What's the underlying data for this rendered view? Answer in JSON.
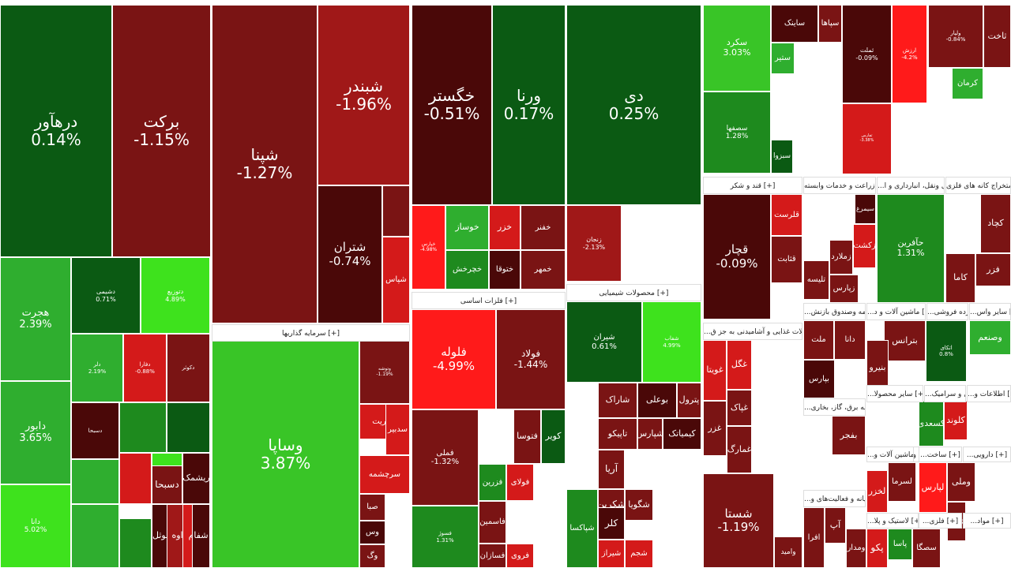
{
  "colors": {
    "dkgreen": "#0b5a13",
    "green": "#1e8a1e",
    "midgreen": "#2fae2f",
    "ltgreen": "#39c527",
    "brgreen": "#3ee21d",
    "dkred": "#4a0808",
    "red": "#7a1414",
    "midred": "#a01818",
    "brred": "#d41a1a",
    "vred": "#ff1a1a"
  },
  "headers": [
    "سرمایه گذاریها [+]",
    "فلزات اساسی [+]",
    "محصولات شیمیایی [+]",
    "قند و شکر [+]",
    "زراعت و خدمات وابسته [+]",
    "...حمل ونقل، انبارداری و ا [+]",
    "استخراج کانه های فلزی [+]",
    "...محصولات غذایی و آشامیدنی به جز ق [+]",
    "...بیمه وصندوق بازنش [+]",
    "...ماشین آلات و د [+]",
    "...خرده فروشی [+]",
    "...سایر واس [+]",
    "...عرضه برق، گاز، بخاری [+]",
    "...سایر محصولا [+]",
    "...کاشی و سرامیک [+]",
    "...اطلاعات و [+]",
    "خودروسازی و ساخت قطعات [+]",
    "...رایانه و فعالیت‌های و [+]",
    "...ماشین آلات و [+]",
    "...ساخت [+]",
    "...دارویی [+]",
    "...لاستیک و پلا [+]",
    "...فلزی [+]",
    "...مواد [+]"
  ],
  "tiles": [
    {
      "s": "درهآور",
      "p": "0.14%",
      "c": "dkgreen"
    },
    {
      "s": "برکت",
      "p": "-1.15%",
      "c": "red"
    },
    {
      "s": "هجرت",
      "p": "2.39%",
      "c": "midgreen"
    },
    {
      "s": "دشیمی",
      "p": "0.71%",
      "c": "dkgreen"
    },
    {
      "s": "دتوزیع",
      "p": "4.89%",
      "c": "brgreen"
    },
    {
      "s": "دابور",
      "p": "3.65%",
      "c": "midgreen"
    },
    {
      "s": "دلر",
      "p": "2.19%",
      "c": "midgreen"
    },
    {
      "s": "دفارا",
      "p": "-0.88%",
      "c": "brred"
    },
    {
      "s": "دکوثر",
      "p": "",
      "c": "red"
    },
    {
      "s": "دانا",
      "p": "5.02%",
      "c": "brgreen"
    },
    {
      "s": "دسبحا",
      "p": "",
      "c": "dkred"
    },
    {
      "s": "",
      "p": "",
      "c": "green"
    },
    {
      "s": "",
      "p": "",
      "c": "dkgreen"
    },
    {
      "s": "",
      "p": "",
      "c": "midgreen"
    },
    {
      "s": "",
      "p": "",
      "c": "brred"
    },
    {
      "s": "",
      "p": "",
      "c": "brgreen"
    },
    {
      "s": "دسبحا",
      "p": "",
      "c": "red"
    },
    {
      "s": "ریشمک",
      "p": "",
      "c": "dkred"
    },
    {
      "s": "",
      "p": "",
      "c": "midgreen"
    },
    {
      "s": "",
      "p": "",
      "c": "green"
    },
    {
      "s": "دکسوثل",
      "p": "",
      "c": "dkred"
    },
    {
      "s": "داوه",
      "p": "",
      "c": "midred"
    },
    {
      "s": "ددام",
      "p": "",
      "c": "brred"
    },
    {
      "s": "شفا",
      "p": "",
      "c": "dkred"
    },
    {
      "s": "شپنا",
      "p": "-1.27%",
      "c": "red"
    },
    {
      "s": "شبندر",
      "p": "-1.96%",
      "c": "midred"
    },
    {
      "s": "شتران",
      "p": "-0.74%",
      "c": "dkred"
    },
    {
      "s": "شپاس",
      "p": "",
      "c": "brred"
    },
    {
      "s": "",
      "p": "",
      "c": "red"
    },
    {
      "s": "وساپا",
      "p": "3.87%",
      "c": "ltgreen"
    },
    {
      "s": "وتوشه",
      "p": "-1.19%",
      "c": "red"
    },
    {
      "s": "مدیریت",
      "p": "",
      "c": "brred"
    },
    {
      "s": "سدبیر",
      "p": "",
      "c": "brred"
    },
    {
      "s": "سرچشمه",
      "p": "",
      "c": "brred"
    },
    {
      "s": "صبا",
      "p": "",
      "c": "red"
    },
    {
      "s": "وس",
      "p": "",
      "c": "dkred"
    },
    {
      "s": "وگ",
      "p": "",
      "c": "red"
    },
    {
      "s": "خگستر",
      "p": "-0.51%",
      "c": "dkred"
    },
    {
      "s": "ورنا",
      "p": "0.17%",
      "c": "dkgreen"
    },
    {
      "s": "خپارس",
      "p": "-4.98%",
      "c": "vred"
    },
    {
      "s": "خوساز",
      "p": "",
      "c": "midgreen"
    },
    {
      "s": "خزر",
      "p": "",
      "c": "brred"
    },
    {
      "s": "خفنر",
      "p": "",
      "c": "red"
    },
    {
      "s": "خچرخش",
      "p": "",
      "c": "green"
    },
    {
      "s": "ختوقا",
      "p": "",
      "c": "dkred"
    },
    {
      "s": "خمهر",
      "p": "",
      "c": "red"
    },
    {
      "s": "فلوله",
      "p": "-4.99%",
      "c": "vred"
    },
    {
      "s": "فولاد",
      "p": "-1.44%",
      "c": "red"
    },
    {
      "s": "فملی",
      "p": "-1.32%",
      "c": "red"
    },
    {
      "s": "فتوسا",
      "p": "",
      "c": "red"
    },
    {
      "s": "کویر",
      "p": "",
      "c": "dkgreen"
    },
    {
      "s": "فزرین",
      "p": "",
      "c": "green"
    },
    {
      "s": "فولای",
      "p": "",
      "c": "brred"
    },
    {
      "s": "فسوژ",
      "p": "1.31%",
      "c": "green"
    },
    {
      "s": "فاسمین",
      "p": "",
      "c": "red"
    },
    {
      "s": "فسازان",
      "p": "",
      "c": "red"
    },
    {
      "s": "فروی",
      "p": "",
      "c": "brred"
    },
    {
      "s": "دی",
      "p": "0.25%",
      "c": "dkgreen"
    },
    {
      "s": "زنجان",
      "p": "-2.13%",
      "c": "midred"
    },
    {
      "s": "شیران",
      "p": "0.61%",
      "c": "dkgreen"
    },
    {
      "s": "شفاب",
      "p": "4.99%",
      "c": "brgreen"
    },
    {
      "s": "شاراک",
      "p": "",
      "c": "red"
    },
    {
      "s": "بوعلی",
      "p": "",
      "c": "dkred"
    },
    {
      "s": "پترول",
      "p": "",
      "c": "red"
    },
    {
      "s": "تاپیکو",
      "p": "",
      "c": "red"
    },
    {
      "s": "شپارس",
      "p": "",
      "c": "red"
    },
    {
      "s": "کیمیاتک",
      "p": "",
      "c": "dkred"
    },
    {
      "s": "آریا",
      "p": "",
      "c": "red"
    },
    {
      "s": "شکربن",
      "p": "",
      "c": "red"
    },
    {
      "s": "کلر",
      "p": "",
      "c": "dkred"
    },
    {
      "s": "شگویا",
      "p": "",
      "c": "red"
    },
    {
      "s": "شپاکسا",
      "p": "",
      "c": "green"
    },
    {
      "s": "شیراز",
      "p": "",
      "c": "brred"
    },
    {
      "s": "شجم",
      "p": "",
      "c": "brred"
    },
    {
      "s": "سکرد",
      "p": "3.03%",
      "c": "ltgreen"
    },
    {
      "s": "سصفها",
      "p": "1.28%",
      "c": "green"
    },
    {
      "s": "سپاها",
      "p": "",
      "c": "red"
    },
    {
      "s": "ساینک",
      "p": "",
      "c": "dkred"
    },
    {
      "s": "ستیر",
      "p": "",
      "c": "midgreen"
    },
    {
      "s": "سبزوا",
      "p": "",
      "c": "dkgreen"
    },
    {
      "s": "قچار",
      "p": "-0.09%",
      "c": "dkred"
    },
    {
      "s": "قلرست",
      "p": "",
      "c": "brred"
    },
    {
      "s": "قثابت",
      "p": "",
      "c": "red"
    },
    {
      "s": "شستا",
      "p": "-1.19%",
      "c": "red"
    },
    {
      "s": "وامید",
      "p": "",
      "c": "red"
    },
    {
      "s": "غویتا",
      "p": "",
      "c": "brred"
    },
    {
      "s": "غگل",
      "p": "",
      "c": "brred"
    },
    {
      "s": "غزر",
      "p": "",
      "c": "red"
    },
    {
      "s": "غپاک",
      "p": "",
      "c": "red"
    },
    {
      "s": "غمارگ",
      "p": "",
      "c": "red"
    },
    {
      "s": "سیمرغ",
      "p": "",
      "c": "dkred"
    },
    {
      "s": "زملارد",
      "p": "",
      "c": "red"
    },
    {
      "s": "زکشت",
      "p": "",
      "c": "brred"
    },
    {
      "s": "تلیسه",
      "p": "",
      "c": "red"
    },
    {
      "s": "زپارس",
      "p": "",
      "c": "red"
    },
    {
      "s": "حآفرین",
      "p": "1.31%",
      "c": "green"
    },
    {
      "s": "کچاد",
      "p": "",
      "c": "red"
    },
    {
      "s": "فزر",
      "p": "",
      "c": "red"
    },
    {
      "s": "کاما",
      "p": "",
      "c": "red"
    },
    {
      "s": "ثملت",
      "p": "-0.09%",
      "c": "dkred"
    },
    {
      "s": "ارزش",
      "p": "-4.2%",
      "c": "vred"
    },
    {
      "s": "ولپار",
      "p": "-0.84%",
      "c": "red"
    },
    {
      "s": "ثاخت",
      "p": "",
      "c": "red"
    },
    {
      "s": "کرمان",
      "p": "",
      "c": "midgreen"
    },
    {
      "s": "ثفارس",
      "p": "-3.38%",
      "c": "brred"
    },
    {
      "s": "ملت",
      "p": "",
      "c": "red"
    },
    {
      "s": "دانا",
      "p": "",
      "c": "red"
    },
    {
      "s": "بپارس",
      "p": "",
      "c": "dkred"
    },
    {
      "s": "بترانس",
      "p": "",
      "c": "red"
    },
    {
      "s": "بنیرو",
      "p": "",
      "c": "red"
    },
    {
      "s": "وصنعم",
      "p": "",
      "c": "midgreen"
    },
    {
      "s": "اتکای",
      "p": "0.8%",
      "c": "dkgreen"
    },
    {
      "s": "کلوند",
      "p": "",
      "c": "brred"
    },
    {
      "s": "کسعدی",
      "p": "",
      "c": "green"
    },
    {
      "s": "بفجر",
      "p": "",
      "c": "red"
    },
    {
      "s": "لپارس",
      "p": "",
      "c": "vred"
    },
    {
      "s": "لسرما",
      "p": "",
      "c": "red"
    },
    {
      "s": "لخزر",
      "p": "",
      "c": "brred"
    },
    {
      "s": "وملی",
      "p": "",
      "c": "red"
    },
    {
      "s": "سصگا",
      "p": "",
      "c": "red"
    },
    {
      "s": "پاسا",
      "p": "",
      "c": "green"
    },
    {
      "s": "پکو",
      "p": "",
      "c": "brred"
    },
    {
      "s": "افرا",
      "p": "",
      "c": "red"
    },
    {
      "s": "آپ",
      "p": "",
      "c": "red"
    },
    {
      "s": "ومدار",
      "p": "",
      "c": "red"
    },
    {
      "s": "چخزر",
      "p": "",
      "c": "red"
    }
  ]
}
